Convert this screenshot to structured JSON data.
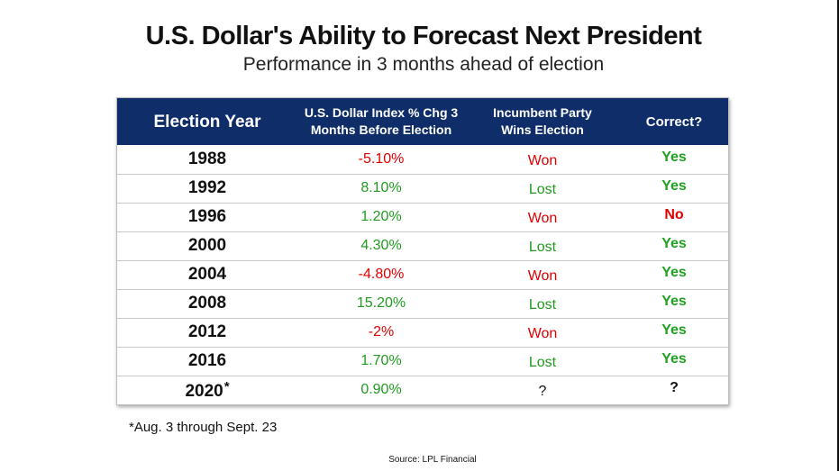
{
  "title": "U.S. Dollar's Ability to Forecast Next President",
  "subtitle": "Performance in 3 months ahead of election",
  "footnote": "*Aug. 3 through Sept. 23",
  "source": "Source: LPL Financial",
  "colors": {
    "header_bg": "#0f2d69",
    "negative": "#e00000",
    "positive": "#1f9a1f"
  },
  "chart_data": {
    "type": "table",
    "columns": [
      "Election Year",
      "U.S. Dollar Index % Chg 3 Months Before Election",
      "Incumbent Party Wins Election",
      "Correct?"
    ],
    "column_lines": [
      [
        "Election Year"
      ],
      [
        "U.S. Dollar Index % Chg 3",
        "Months Before Election"
      ],
      [
        "Incumbent Party",
        "Wins Election"
      ],
      [
        "Correct?"
      ]
    ],
    "rows": [
      {
        "year": "1988",
        "mark": "",
        "change": "-5.10%",
        "incumbent": "Won",
        "correct": "Yes"
      },
      {
        "year": "1992",
        "mark": "",
        "change": "8.10%",
        "incumbent": "Lost",
        "correct": "Yes"
      },
      {
        "year": "1996",
        "mark": "",
        "change": "1.20%",
        "incumbent": "Won",
        "correct": "No"
      },
      {
        "year": "2000",
        "mark": "",
        "change": "4.30%",
        "incumbent": "Lost",
        "correct": "Yes"
      },
      {
        "year": "2004",
        "mark": "",
        "change": "-4.80%",
        "incumbent": "Won",
        "correct": "Yes"
      },
      {
        "year": "2008",
        "mark": "",
        "change": "15.20%",
        "incumbent": "Lost",
        "correct": "Yes"
      },
      {
        "year": "2012",
        "mark": "",
        "change": "-2%",
        "incumbent": "Won",
        "correct": "Yes"
      },
      {
        "year": "2016",
        "mark": "",
        "change": "1.70%",
        "incumbent": "Lost",
        "correct": "Yes"
      },
      {
        "year": "2020",
        "mark": "*",
        "change": "0.90%",
        "incumbent": "?",
        "correct": "?"
      }
    ]
  }
}
